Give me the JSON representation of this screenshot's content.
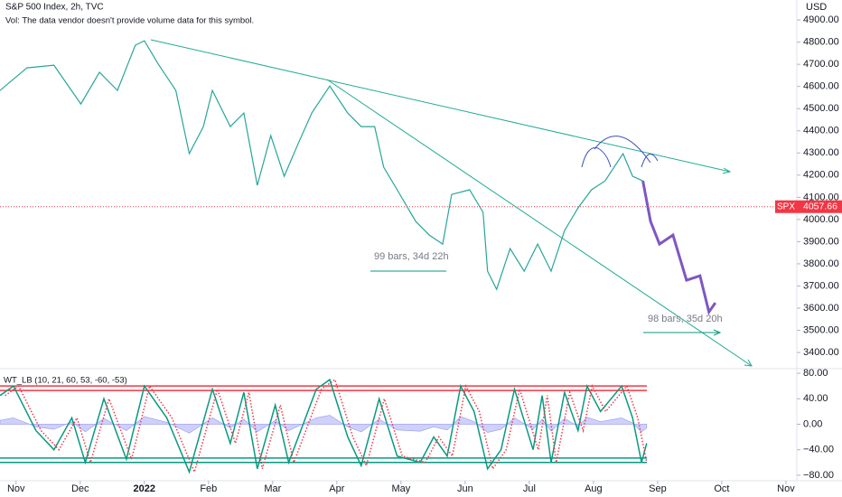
{
  "header": {
    "title": "S&P 500 Index, 2h, TVC",
    "volume_note": "Vol: The data vendor doesn't provide volume data for this symbol.",
    "currency": "USD"
  },
  "annotations": {
    "measure_1": "99 bars, 34d 22h",
    "measure_2": "98 bars, 35d 20h"
  },
  "last_price": {
    "symbol": "SPX",
    "value": 4057.66,
    "color": "#f23645"
  },
  "chart_data": [
    {
      "type": "line",
      "xlim": [
        -0.25,
        12.17
      ],
      "xticks": [
        {
          "value": 0,
          "label": "Nov"
        },
        {
          "value": 1,
          "label": "Dec"
        },
        {
          "value": 2,
          "label": "2022"
        },
        {
          "value": 3,
          "label": "Feb"
        },
        {
          "value": 4,
          "label": "Mar"
        },
        {
          "value": 5,
          "label": "Apr"
        },
        {
          "value": 6,
          "label": "May"
        },
        {
          "value": 7,
          "label": "Jun"
        },
        {
          "value": 8,
          "label": "Jul"
        },
        {
          "value": 9,
          "label": "Aug"
        },
        {
          "value": 10,
          "label": "Sep"
        },
        {
          "value": 11,
          "label": "Oct"
        },
        {
          "value": 12,
          "label": "Nov"
        }
      ],
      "ylim": [
        3327,
        4990
      ],
      "yticks": [
        {
          "value": 3400,
          "label": "3400.00"
        },
        {
          "value": 3500,
          "label": "3500.00"
        },
        {
          "value": 3600,
          "label": "3600.00"
        },
        {
          "value": 3700,
          "label": "3700.00"
        },
        {
          "value": 3800,
          "label": "3800.00"
        },
        {
          "value": 3900,
          "label": "3900.00"
        },
        {
          "value": 4000,
          "label": "4000.00"
        },
        {
          "value": 4100,
          "label": "4100.00"
        },
        {
          "value": 4200,
          "label": "4200.00"
        },
        {
          "value": 4300,
          "label": "4300.00"
        },
        {
          "value": 4400,
          "label": "4400.00"
        },
        {
          "value": 4500,
          "label": "4500.00"
        },
        {
          "value": 4600,
          "label": "4600.00"
        },
        {
          "value": 4700,
          "label": "4700.00"
        },
        {
          "value": 4800,
          "label": "4800.00"
        },
        {
          "value": 4900,
          "label": "4900.00"
        }
      ],
      "series": [
        {
          "color": "#26a69a",
          "width": 1.2,
          "x": [
            -0.25,
            0.17,
            0.59,
            1.01,
            1.3,
            1.58,
            1.86,
            2.0,
            2.21,
            2.49,
            2.7,
            2.92,
            3.06,
            3.34,
            3.55,
            3.76,
            3.97,
            4.18,
            4.39,
            4.61,
            4.89,
            5.17,
            5.38,
            5.59,
            5.73,
            5.94,
            6.23,
            6.44,
            6.65,
            6.79,
            7.07,
            7.28,
            7.35,
            7.49,
            7.7,
            7.92,
            8.13,
            8.34,
            8.55,
            8.76,
            8.97,
            9.18,
            9.46,
            9.61,
            9.77
          ],
          "values": [
            4582,
            4684,
            4696,
            4521,
            4664,
            4582,
            4786,
            4806,
            4704,
            4582,
            4297,
            4419,
            4582,
            4419,
            4480,
            4154,
            4378,
            4195,
            4337,
            4480,
            4602,
            4480,
            4419,
            4419,
            4236,
            4134,
            3991,
            3930,
            3889,
            4113,
            4134,
            4032,
            3767,
            3685,
            3869,
            3767,
            3889,
            3767,
            3950,
            4052,
            4134,
            4174,
            4297,
            4195,
            4174
          ]
        },
        {
          "color": "#7e57c2",
          "width": 3,
          "x": [
            9.77,
            9.89,
            10.03,
            10.24,
            10.45,
            10.66,
            10.8,
            10.9
          ],
          "values": [
            4174,
            3991,
            3889,
            3930,
            3726,
            3746,
            3583,
            3624
          ]
        }
      ]
    },
    {
      "type": "line",
      "title": "WT_LB (10, 21, 60, 53, -60, -53)",
      "xlim": [
        -0.25,
        12.17
      ],
      "ylim": [
        -88.7,
        87.2
      ],
      "yticks": [
        {
          "value": 80,
          "label": "80.00"
        },
        {
          "value": 40,
          "label": "40.00"
        },
        {
          "value": 0,
          "label": "0.00"
        },
        {
          "value": -40,
          "label": "−40.00"
        },
        {
          "value": -80,
          "label": "−80.00"
        }
      ],
      "levels": [
        {
          "value": 60,
          "color": "#f23645"
        },
        {
          "value": 53,
          "color": "#f23645"
        },
        {
          "value": -60,
          "color": "#089981"
        },
        {
          "value": -53,
          "color": "#089981"
        }
      ],
      "series": [
        {
          "color": "#9598f5",
          "area": true,
          "x": [
            -0.25,
            -0.04,
            0.31,
            0.59,
            0.87,
            1.08,
            1.37,
            1.72,
            2.0,
            2.35,
            2.7,
            3.06,
            3.34,
            3.55,
            3.76,
            4.04,
            4.25,
            4.68,
            4.89,
            5.17,
            5.38,
            5.66,
            5.94,
            6.3,
            6.51,
            6.72,
            6.93,
            7.14,
            7.35,
            7.56,
            7.77,
            8.06,
            8.2,
            8.34,
            8.55,
            8.76,
            8.9,
            9.11,
            9.44,
            9.61,
            9.75,
            9.83
          ],
          "values": [
            6,
            10,
            -4,
            -8,
            4,
            -12,
            9,
            -10,
            12,
            3,
            -14,
            10,
            -6,
            8,
            -12,
            6,
            -10,
            10,
            14,
            -4,
            -12,
            8,
            -9,
            -11,
            -4,
            -9,
            12,
            4,
            -13,
            -8,
            10,
            -8,
            8,
            -11,
            9,
            -3,
            11,
            4,
            10,
            2,
            -12,
            -6
          ]
        },
        {
          "color": "#089981",
          "width": 1.5,
          "x": [
            -0.25,
            -0.04,
            0.31,
            0.59,
            0.87,
            1.08,
            1.37,
            1.72,
            2.0,
            2.35,
            2.7,
            3.06,
            3.34,
            3.55,
            3.76,
            4.04,
            4.25,
            4.68,
            4.89,
            5.17,
            5.38,
            5.66,
            5.94,
            6.3,
            6.51,
            6.72,
            6.93,
            7.14,
            7.35,
            7.56,
            7.77,
            8.06,
            8.2,
            8.34,
            8.55,
            8.76,
            8.9,
            9.11,
            9.44,
            9.61,
            9.75,
            9.83
          ],
          "values": [
            45,
            60,
            -10,
            -40,
            10,
            -60,
            40,
            -55,
            60,
            10,
            -75,
            55,
            -30,
            50,
            -70,
            30,
            -60,
            55,
            70,
            -20,
            -65,
            40,
            -50,
            -60,
            -20,
            -50,
            60,
            20,
            -70,
            -40,
            55,
            -40,
            45,
            -60,
            50,
            -10,
            60,
            20,
            60,
            10,
            -60,
            -30
          ]
        },
        {
          "color": "#f23645",
          "width": 1.5,
          "dotted": true,
          "x": [
            -0.17,
            0.04,
            0.39,
            0.67,
            0.95,
            1.16,
            1.45,
            1.8,
            2.08,
            2.43,
            2.78,
            3.14,
            3.42,
            3.63,
            3.84,
            4.12,
            4.33,
            4.76,
            4.97,
            5.25,
            5.46,
            5.74,
            6.02,
            6.38,
            6.59,
            6.8,
            7.01,
            7.22,
            7.43,
            7.64,
            7.85,
            8.14,
            8.28,
            8.42,
            8.63,
            8.84,
            8.98,
            9.19,
            9.52,
            9.69,
            9.83
          ],
          "values": [
            45,
            60,
            -10,
            -40,
            10,
            -60,
            40,
            -55,
            60,
            10,
            -75,
            55,
            -30,
            50,
            -70,
            30,
            -60,
            55,
            70,
            -20,
            -65,
            40,
            -50,
            -60,
            -20,
            -50,
            60,
            20,
            -70,
            -40,
            55,
            -40,
            45,
            -60,
            50,
            -10,
            60,
            20,
            60,
            10,
            -60
          ]
        }
      ]
    }
  ]
}
